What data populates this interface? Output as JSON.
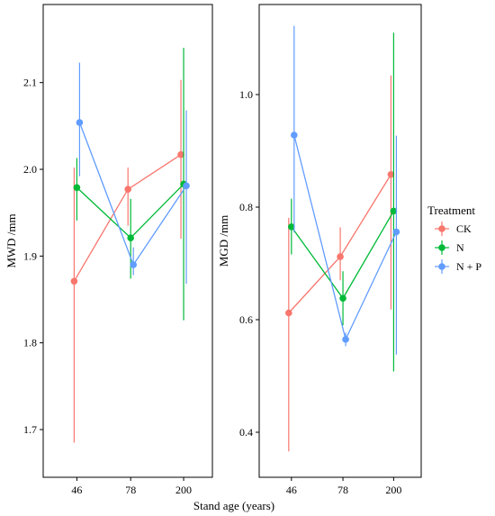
{
  "chart_data": [
    {
      "type": "line",
      "panel": "left",
      "ylabel": "MWD /mm",
      "xlabel": "",
      "categories": [
        "46",
        "78",
        "200"
      ],
      "ylim": [
        1.645,
        2.19
      ],
      "yticks": [
        1.7,
        1.8,
        1.9,
        2.0,
        2.1
      ],
      "ytick_labels": [
        "1.7",
        "1.8",
        "1.9",
        "2.0",
        "2.1"
      ],
      "grid": false,
      "series": [
        {
          "name": "CK",
          "color": "#F8766D",
          "values": [
            1.871,
            1.977,
            2.017
          ],
          "lower": [
            1.685,
            1.935,
            1.92
          ],
          "upper": [
            2.002,
            2.002,
            2.103
          ]
        },
        {
          "name": "N",
          "color": "#00BA38",
          "values": [
            1.979,
            1.921,
            1.983
          ],
          "lower": [
            1.941,
            1.874,
            1.826
          ],
          "upper": [
            2.013,
            1.966,
            2.14
          ]
        },
        {
          "name": "N + P",
          "color": "#619CFF",
          "values": [
            2.054,
            1.89,
            1.981
          ],
          "lower": [
            1.992,
            1.878,
            1.868
          ],
          "upper": [
            2.123,
            1.91,
            2.068
          ]
        }
      ]
    },
    {
      "type": "line",
      "panel": "right",
      "ylabel": "MGD /mm",
      "xlabel": "",
      "categories": [
        "46",
        "78",
        "200"
      ],
      "ylim": [
        0.32,
        1.16
      ],
      "yticks": [
        0.4,
        0.6,
        0.8,
        1.0
      ],
      "ytick_labels": [
        "0.4",
        "0.6",
        "0.8",
        "1.0"
      ],
      "grid": false,
      "series": [
        {
          "name": "CK",
          "color": "#F8766D",
          "values": [
            0.612,
            0.712,
            0.858
          ],
          "lower": [
            0.366,
            0.67,
            0.618
          ],
          "upper": [
            0.781,
            0.764,
            1.034
          ]
        },
        {
          "name": "N",
          "color": "#00BA38",
          "values": [
            0.765,
            0.638,
            0.793
          ],
          "lower": [
            0.716,
            0.59,
            0.508
          ],
          "upper": [
            0.815,
            0.686,
            1.11
          ]
        },
        {
          "name": "N + P",
          "color": "#619CFF",
          "values": [
            0.928,
            0.565,
            0.756
          ],
          "lower": [
            0.755,
            0.553,
            0.538
          ],
          "upper": [
            1.122,
            0.577,
            0.927
          ]
        }
      ]
    }
  ],
  "shared_xlabel": "Stand age (years)",
  "legend": {
    "title": "Treatment",
    "position": "right",
    "items": [
      "CK",
      "N",
      "N + P"
    ]
  }
}
